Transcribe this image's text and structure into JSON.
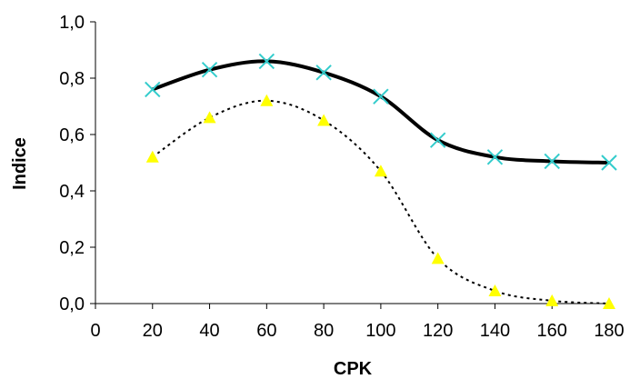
{
  "chart_data": {
    "type": "line",
    "title": "",
    "xlabel": "CPK",
    "ylabel": "Indice",
    "xlim": [
      0,
      180
    ],
    "ylim": [
      0.0,
      1.0
    ],
    "x_ticks": [
      "0",
      "20",
      "40",
      "60",
      "80",
      "100",
      "120",
      "140",
      "160",
      "180"
    ],
    "y_ticks": [
      "0,0",
      "0,2",
      "0,4",
      "0,6",
      "0,8",
      "1,0"
    ],
    "grid": false,
    "legend": "none",
    "x": [
      20,
      40,
      60,
      80,
      100,
      120,
      140,
      160,
      180
    ],
    "series": [
      {
        "values": [
          0.76,
          0.83,
          0.86,
          0.82,
          0.735,
          0.58,
          0.52,
          0.505,
          0.5
        ],
        "line_style": "solid",
        "line_color": "#000000",
        "marker": "x",
        "marker_color": "#33CCCC"
      },
      {
        "values": [
          0.52,
          0.66,
          0.72,
          0.65,
          0.47,
          0.16,
          0.045,
          0.01,
          0.0
        ],
        "line_style": "dotted",
        "line_color": "#000000",
        "marker": "triangle",
        "marker_color": "#FFFF00"
      }
    ]
  }
}
